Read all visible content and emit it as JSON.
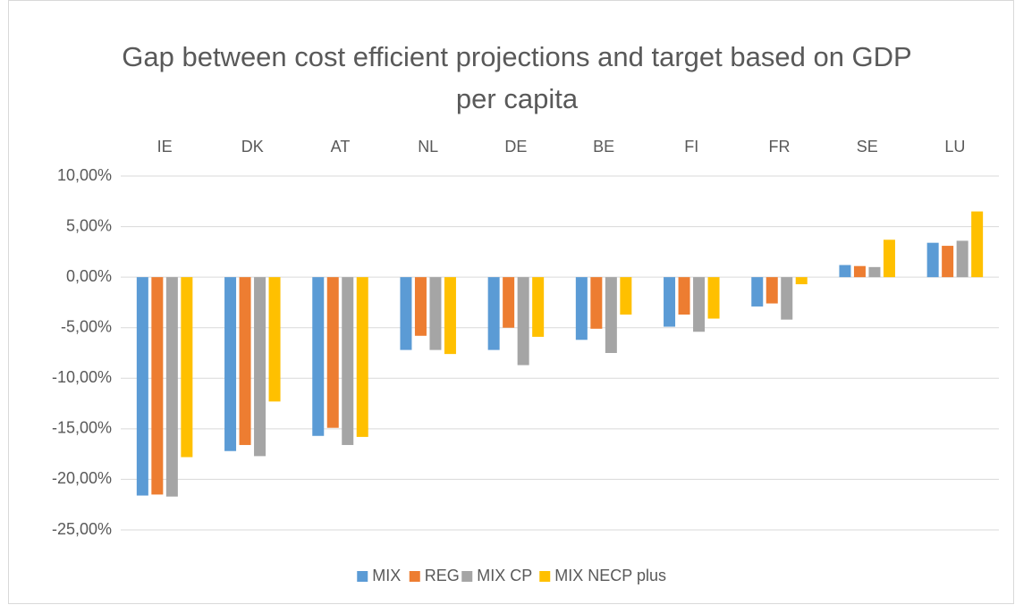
{
  "chart_data": {
    "type": "bar",
    "title": "Gap between cost efficient projections and target based on GDP per capita",
    "categories": [
      "IE",
      "DK",
      "AT",
      "NL",
      "DE",
      "BE",
      "FI",
      "FR",
      "SE",
      "LU"
    ],
    "series": [
      {
        "name": "MIX",
        "color": "#5b9bd5",
        "values": [
          -21.6,
          -17.2,
          -15.7,
          -7.2,
          -7.2,
          -6.2,
          -4.9,
          -2.9,
          1.2,
          3.4
        ]
      },
      {
        "name": "REG",
        "color": "#ed7d31",
        "values": [
          -21.5,
          -16.6,
          -14.9,
          -5.8,
          -5.0,
          -5.1,
          -3.7,
          -2.6,
          1.1,
          3.1
        ]
      },
      {
        "name": "MIX CP",
        "color": "#a5a5a5",
        "values": [
          -21.7,
          -17.7,
          -16.6,
          -7.2,
          -8.7,
          -7.5,
          -5.4,
          -4.2,
          1.0,
          3.6
        ]
      },
      {
        "name": "MIX NECP plus",
        "color": "#ffc000",
        "values": [
          -17.8,
          -12.3,
          -15.8,
          -7.6,
          -5.9,
          -3.7,
          -4.1,
          -0.7,
          3.7,
          6.5
        ]
      }
    ],
    "ylim": [
      -25,
      10
    ],
    "yticks": [
      {
        "value": -25,
        "label": "-25,00%"
      },
      {
        "value": -20,
        "label": "-20,00%"
      },
      {
        "value": -15,
        "label": "-15,00%"
      },
      {
        "value": -10,
        "label": "-10,00%"
      },
      {
        "value": -5,
        "label": "-5,00%"
      },
      {
        "value": 0,
        "label": "0,00%"
      },
      {
        "value": 5,
        "label": "5,00%"
      },
      {
        "value": 10,
        "label": "10,00%"
      }
    ],
    "grid": true,
    "legend": "bottom"
  }
}
